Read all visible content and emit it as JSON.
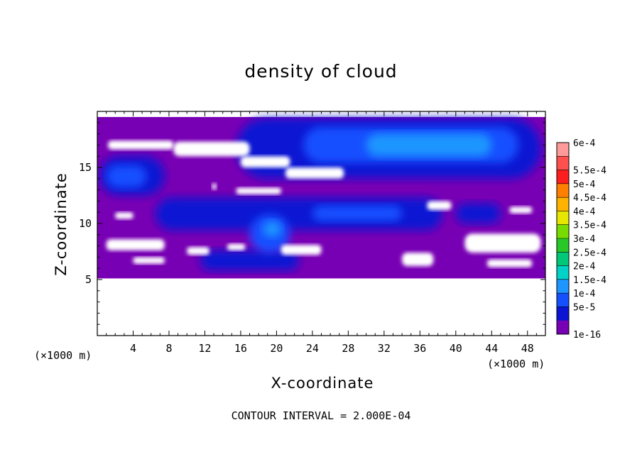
{
  "chart_data": {
    "type": "heatmap",
    "title": "density of cloud",
    "xlabel": "X-coordinate",
    "ylabel": "Z-coordinate",
    "x_unit": "(×1000 m)",
    "y_unit": "(×1000 m)",
    "xlim": [
      0,
      50
    ],
    "ylim": [
      0,
      20
    ],
    "xticks": [
      4,
      8,
      12,
      16,
      20,
      24,
      28,
      32,
      36,
      40,
      44,
      48
    ],
    "yticks": [
      5,
      10,
      15
    ],
    "footer": "CONTOUR INTERVAL = 2.000E-04",
    "colorbar": {
      "labels": [
        "6e-4",
        "5.5e-4",
        "5e-4",
        "4.5e-4",
        "4e-4",
        "3.5e-4",
        "3e-4",
        "2.5e-4",
        "2e-4",
        "1.5e-4",
        "1e-4",
        "5e-5",
        "1e-16"
      ],
      "colors": [
        "#ff9a9a",
        "#ff5050",
        "#ff1e1e",
        "#ff7f00",
        "#ffb300",
        "#e6e600",
        "#78dc00",
        "#28c828",
        "#00c878",
        "#00d2c8",
        "#1e96ff",
        "#1450ff",
        "#0a14d2",
        "#7800b4"
      ]
    },
    "regions": {
      "cloud_base_z": 5.1,
      "cloud_top_z": 19.5,
      "background_color": "#7800b4",
      "clear_patches": [
        {
          "x": [
            1.2,
            8.5
          ],
          "z": [
            16.6,
            17.4
          ]
        },
        {
          "x": [
            8.5,
            17.0
          ],
          "z": [
            16.0,
            17.3
          ]
        },
        {
          "x": [
            16.0,
            21.5
          ],
          "z": [
            15.0,
            16.0
          ]
        },
        {
          "x": [
            21.0,
            27.5
          ],
          "z": [
            14.0,
            15.0
          ]
        },
        {
          "x": [
            15.5,
            20.5
          ],
          "z": [
            12.6,
            13.2
          ]
        },
        {
          "x": [
            12.8,
            13.3
          ],
          "z": [
            13.0,
            13.6
          ]
        },
        {
          "x": [
            2.0,
            4.0
          ],
          "z": [
            10.4,
            11.0
          ]
        },
        {
          "x": [
            1.0,
            7.5
          ],
          "z": [
            7.6,
            8.6
          ]
        },
        {
          "x": [
            4.0,
            7.5
          ],
          "z": [
            6.4,
            7.0
          ]
        },
        {
          "x": [
            10.0,
            12.5
          ],
          "z": [
            7.2,
            7.9
          ]
        },
        {
          "x": [
            14.5,
            16.5
          ],
          "z": [
            7.6,
            8.2
          ]
        },
        {
          "x": [
            20.5,
            25.0
          ],
          "z": [
            7.2,
            8.1
          ]
        },
        {
          "x": [
            34.0,
            37.5
          ],
          "z": [
            6.2,
            7.4
          ]
        },
        {
          "x": [
            36.8,
            39.5
          ],
          "z": [
            11.2,
            12.0
          ]
        },
        {
          "x": [
            46.0,
            48.5
          ],
          "z": [
            10.9,
            11.5
          ]
        },
        {
          "x": [
            41.0,
            49.5
          ],
          "z": [
            7.4,
            9.1
          ]
        },
        {
          "x": [
            43.5,
            48.5
          ],
          "z": [
            6.1,
            6.8
          ]
        }
      ],
      "cloud_layers": [
        {
          "x": [
            15.5,
            49.5
          ],
          "z": [
            14.0,
            19.4
          ],
          "level": "5e-5"
        },
        {
          "x": [
            0.3,
            7.5
          ],
          "z": [
            12.5,
            16.0
          ],
          "level": "5e-5"
        },
        {
          "x": [
            6.5,
            38.5
          ],
          "z": [
            9.4,
            12.3
          ],
          "level": "5e-5"
        },
        {
          "x": [
            40.0,
            45.0
          ],
          "z": [
            10.0,
            11.8
          ],
          "level": "5e-5"
        },
        {
          "x": [
            11.5,
            22.5
          ],
          "z": [
            5.8,
            7.6
          ],
          "level": "5e-5"
        },
        {
          "x": [
            23.0,
            47.0
          ],
          "z": [
            15.4,
            18.6
          ],
          "level": "1e-4"
        },
        {
          "x": [
            17.0,
            21.5
          ],
          "z": [
            7.4,
            10.8
          ],
          "level": "1e-4"
        },
        {
          "x": [
            24.0,
            34.0
          ],
          "z": [
            10.2,
            11.6
          ],
          "level": "1e-4"
        },
        {
          "x": [
            1.0,
            5.5
          ],
          "z": [
            13.2,
            15.2
          ],
          "level": "1e-4"
        },
        {
          "x": [
            30.0,
            44.0
          ],
          "z": [
            16.0,
            18.0
          ],
          "level": "1.5e-4"
        },
        {
          "x": [
            18.5,
            20.5
          ],
          "z": [
            8.8,
            10.2
          ],
          "level": "1.5e-4"
        }
      ]
    }
  }
}
